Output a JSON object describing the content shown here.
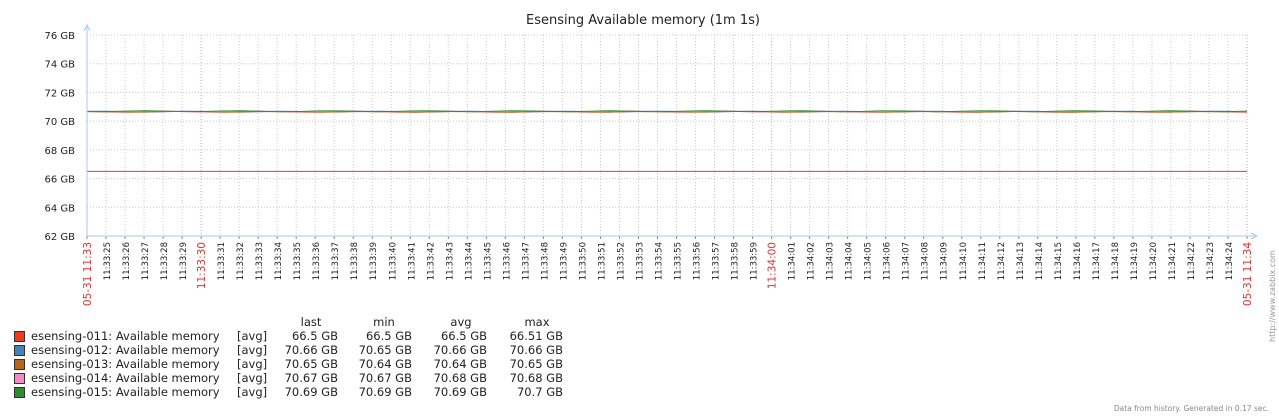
{
  "chart_data": {
    "type": "line",
    "title": "Esensing Available memory (1m 1s)",
    "y_ticks": [
      "76 GB",
      "74 GB",
      "72 GB",
      "70 GB",
      "68 GB",
      "66 GB",
      "64 GB",
      "62 GB"
    ],
    "ylim": [
      62,
      76
    ],
    "x_ticks": [
      "05-31 11:33",
      "11:33:25",
      "11:33:26",
      "11:33:27",
      "11:33:28",
      "11:33:29",
      "11:33:30",
      "11:33:31",
      "11:33:32",
      "11:33:33",
      "11:33:34",
      "11:33:35",
      "11:33:36",
      "11:33:37",
      "11:33:38",
      "11:33:39",
      "11:33:40",
      "11:33:41",
      "11:33:42",
      "11:33:43",
      "11:33:44",
      "11:33:45",
      "11:33:46",
      "11:33:47",
      "11:33:48",
      "11:33:49",
      "11:33:50",
      "11:33:51",
      "11:33:52",
      "11:33:53",
      "11:33:54",
      "11:33:55",
      "11:33:56",
      "11:33:57",
      "11:33:58",
      "11:33:59",
      "11:34:00",
      "11:34:01",
      "11:34:02",
      "11:34:03",
      "11:34:04",
      "11:34:05",
      "11:34:06",
      "11:34:07",
      "11:34:08",
      "11:34:09",
      "11:34:10",
      "11:34:11",
      "11:34:12",
      "11:34:13",
      "11:34:14",
      "11:34:15",
      "11:34:16",
      "11:34:17",
      "11:34:18",
      "11:34:19",
      "11:34:20",
      "11:34:21",
      "11:34:22",
      "11:34:23",
      "11:34:24",
      "05-31 11:34"
    ],
    "highlight_ticks": [
      "05-31 11:33",
      "11:33:30",
      "11:34:00",
      "05-31 11:34"
    ],
    "grid": true,
    "legend_headers": [
      "last",
      "min",
      "avg",
      "max"
    ],
    "series": [
      {
        "name": "esensing-011: Available memory",
        "func": "[avg]",
        "color": "#ee3b19",
        "last": "66.5 GB",
        "min": "66.5 GB",
        "avg": "66.5 GB",
        "max": "66.51 GB",
        "value": 66.5
      },
      {
        "name": "esensing-012: Available memory",
        "func": "[avg]",
        "color": "#4682b4",
        "last": "70.66 GB",
        "min": "70.65 GB",
        "avg": "70.66 GB",
        "max": "70.66 GB",
        "value": 70.66
      },
      {
        "name": "esensing-013: Available memory",
        "func": "[avg]",
        "color": "#b8651a",
        "last": "70.65 GB",
        "min": "70.64 GB",
        "avg": "70.64 GB",
        "max": "70.65 GB",
        "value": 70.645
      },
      {
        "name": "esensing-014: Available memory",
        "func": "[avg]",
        "color": "#f08bc8",
        "last": "70.67 GB",
        "min": "70.67 GB",
        "avg": "70.68 GB",
        "max": "70.68 GB",
        "value": 70.675
      },
      {
        "name": "esensing-015: Available memory",
        "func": "[avg]",
        "color": "#2e8b2e",
        "last": "70.69 GB",
        "min": "70.69 GB",
        "avg": "70.69 GB",
        "max": "70.7 GB",
        "value": 70.69
      }
    ]
  },
  "footer": "Data from history. Generated in 0.17 sec.",
  "side_link": "http://www.zabbix.com"
}
